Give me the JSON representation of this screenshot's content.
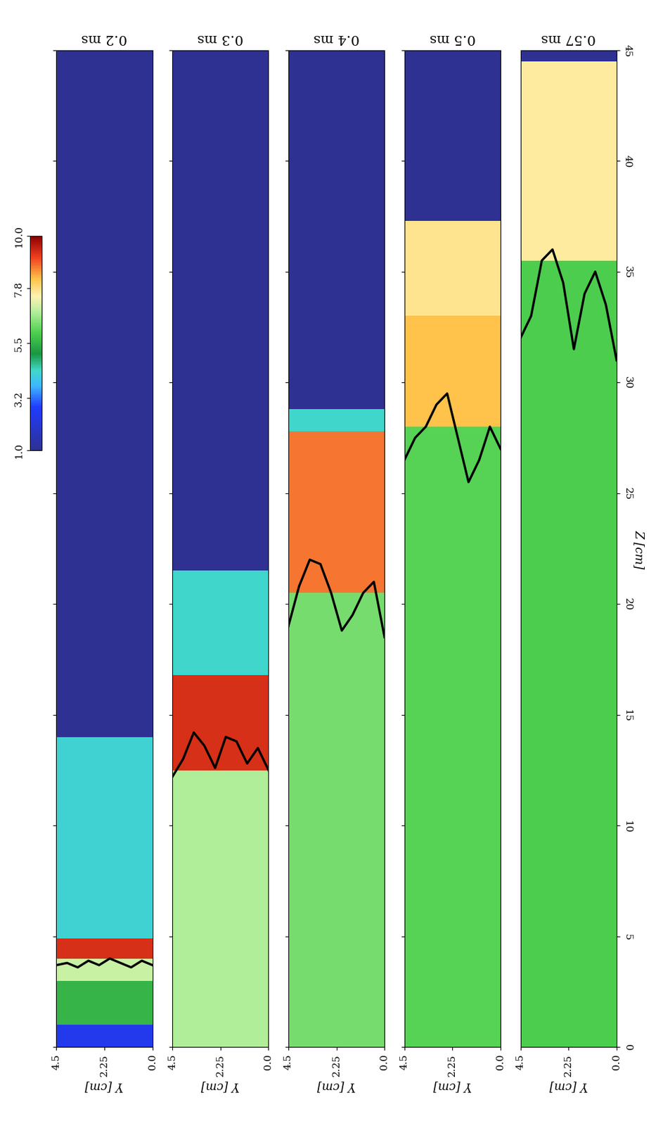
{
  "chart_data": {
    "type": "heatmap",
    "xlabel": "Y [cm]",
    "ylabel": "Z [cm]",
    "xlim": [
      4.5,
      0.0
    ],
    "xticks": [
      4.5,
      2.25,
      {
        "value": 0.0,
        "label": "0.0"
      }
    ],
    "ylim": [
      0,
      45
    ],
    "yticks": [
      0,
      5,
      10,
      15,
      20,
      25,
      30,
      35,
      40,
      45
    ],
    "colorbar": {
      "range": [
        1.0,
        10.0
      ],
      "ticks": [
        {
          "value": 1.0,
          "label": "1.0"
        },
        3.2,
        5.5,
        7.8,
        {
          "value": 10.0,
          "label": "10.0"
        }
      ]
    },
    "panels": [
      {
        "title": "0.2 ms",
        "z_edges": [
          0,
          1,
          3,
          4,
          4.9,
          14,
          45
        ],
        "values": [
          2.5,
          5.5,
          7.0,
          9.3,
          4.2,
          1.0
        ],
        "front": {
          "y": [
            0,
            0.5,
            1,
            1.5,
            2,
            2.5,
            3,
            3.5,
            4,
            4.5
          ],
          "z": [
            3.7,
            3.9,
            3.6,
            3.8,
            4.0,
            3.7,
            3.9,
            3.6,
            3.8,
            3.7
          ]
        }
      },
      {
        "title": "0.3 ms",
        "z_edges": [
          0,
          12.5,
          16.8,
          21.5,
          45
        ],
        "values": [
          6.8,
          9.3,
          4.3,
          1.0
        ],
        "front": {
          "y": [
            0,
            0.5,
            1,
            1.5,
            2,
            2.5,
            3,
            3.5,
            4,
            4.5
          ],
          "z": [
            12.5,
            13.5,
            12.8,
            13.8,
            14.0,
            12.6,
            13.6,
            14.2,
            13.0,
            12.2
          ]
        }
      },
      {
        "title": "0.4 ms",
        "z_edges": [
          0,
          20.5,
          27.8,
          28.8,
          45
        ],
        "values": [
          6.3,
          8.7,
          4.3,
          1.0
        ],
        "front": {
          "y": [
            0,
            0.5,
            1,
            1.5,
            2,
            2.5,
            3,
            3.5,
            4,
            4.5
          ],
          "z": [
            18.5,
            21.0,
            20.5,
            19.5,
            18.8,
            20.5,
            21.8,
            22.0,
            20.8,
            19.0
          ]
        }
      },
      {
        "title": "0.5 ms",
        "z_edges": [
          0,
          28,
          33,
          37.3,
          45
        ],
        "values": [
          6.0,
          8.2,
          7.7,
          1.0
        ],
        "front": {
          "y": [
            0,
            0.5,
            1,
            1.5,
            2,
            2.5,
            3,
            3.5,
            4,
            4.5
          ],
          "z": [
            27.0,
            28.0,
            26.5,
            25.5,
            27.5,
            29.5,
            29.0,
            28.0,
            27.5,
            26.5
          ]
        }
      },
      {
        "title": "0.57 ms",
        "z_edges": [
          0,
          35.5,
          44.5,
          45
        ],
        "values": [
          5.9,
          7.6,
          1.0
        ],
        "front": {
          "y": [
            0,
            0.5,
            1,
            1.5,
            2,
            2.5,
            3,
            3.5,
            4,
            4.5
          ],
          "z": [
            31.0,
            33.5,
            35.0,
            34.0,
            31.5,
            34.5,
            36.0,
            35.5,
            33.0,
            32.0
          ]
        }
      }
    ]
  }
}
